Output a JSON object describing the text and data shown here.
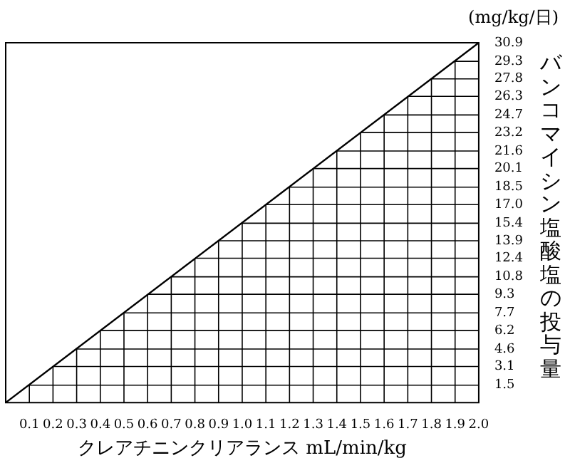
{
  "chart_data": {
    "type": "line",
    "xlabel": "クレアチニンクリアランス mL/min/kg",
    "ylabel": "バンコマイシン塩酸塩の投与量",
    "annotations": [
      "(mg/kg/日)"
    ],
    "x": [
      0,
      2.0
    ],
    "series": [
      {
        "color": "#000000",
        "values": [
          0,
          30.9
        ],
        "axis": "y"
      }
    ],
    "xlim": [
      0,
      2.0
    ],
    "ylim": [
      0,
      30.9
    ],
    "xticks": [
      0.1,
      0.2,
      0.3,
      0.4,
      0.5,
      0.6,
      0.7,
      0.8,
      0.9,
      {
        "value": 1.0,
        "label": "1.0"
      },
      1.1,
      1.2,
      1.3,
      1.4,
      1.5,
      1.6,
      1.7,
      1.8,
      1.9,
      {
        "value": 2.0,
        "label": "2.0"
      }
    ],
    "yticks": [
      1.5,
      3.1,
      4.6,
      6.2,
      7.7,
      9.3,
      10.8,
      12.4,
      13.9,
      15.4,
      {
        "value": 17.0,
        "label": "17.0"
      },
      18.5,
      20.1,
      21.6,
      23.2,
      24.7,
      26.3,
      27.8,
      29.3,
      30.9
    ],
    "grid": true,
    "legend": false,
    "marker": "none",
    "line_style": "solid"
  }
}
